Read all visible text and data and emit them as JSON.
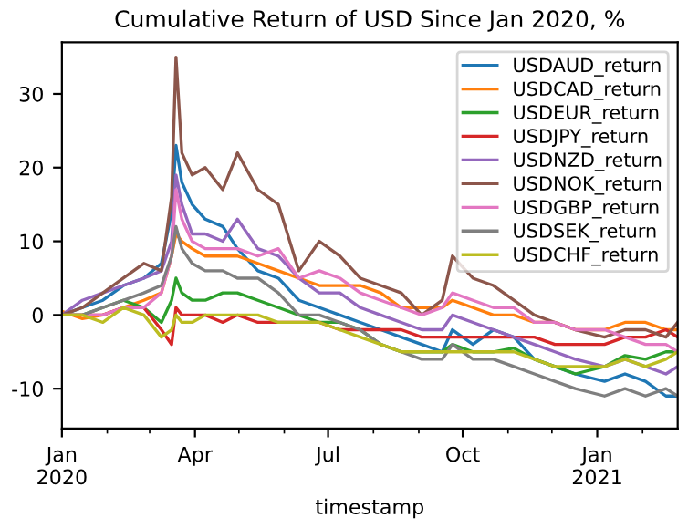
{
  "chart_data": {
    "type": "line",
    "title": "Cumulative Return of USD Since Jan 2020, %",
    "xlabel": "timestamp",
    "x": [
      "2020-01-01",
      "2020-01-15",
      "2020-01-29",
      "2020-02-12",
      "2020-02-26",
      "2020-03-09",
      "2020-03-16",
      "2020-03-19",
      "2020-03-23",
      "2020-03-30",
      "2020-04-08",
      "2020-04-20",
      "2020-04-30",
      "2020-05-14",
      "2020-05-28",
      "2020-06-11",
      "2020-06-25",
      "2020-07-09",
      "2020-07-23",
      "2020-08-06",
      "2020-08-20",
      "2020-09-03",
      "2020-09-17",
      "2020-09-24",
      "2020-10-08",
      "2020-10-22",
      "2020-11-05",
      "2020-11-19",
      "2020-12-03",
      "2020-12-17",
      "2021-01-06",
      "2021-01-20",
      "2021-02-03",
      "2021-02-17",
      "2021-02-25"
    ],
    "xlim": [
      "2020-01-01",
      "2021-02-25"
    ],
    "xticks": [
      {
        "value": "2020-01-01",
        "label": "Jan\n2020"
      },
      {
        "value": "2020-04-01",
        "label": "Apr"
      },
      {
        "value": "2020-07-01",
        "label": "Jul"
      },
      {
        "value": "2020-10-01",
        "label": "Oct"
      },
      {
        "value": "2021-01-01",
        "label": "Jan\n2021"
      }
    ],
    "ylim": [
      -15.4,
      37
    ],
    "yticks": [
      -10,
      0,
      10,
      20,
      30
    ],
    "grid": false,
    "legend": "top right",
    "series": [
      {
        "name": "USDAUD_return",
        "color": "#1f77b4",
        "values": [
          0,
          1,
          2,
          4,
          5,
          7,
          14,
          23,
          18,
          15,
          13,
          12,
          9,
          6,
          5,
          2,
          1,
          0,
          -1,
          -2,
          -3,
          -4,
          -5,
          -2,
          -4,
          -2,
          -3,
          -6,
          -7,
          -8,
          -9,
          -8,
          -9,
          -11,
          -11
        ]
      },
      {
        "name": "USDCAD_return",
        "color": "#ff7f0e",
        "values": [
          0.5,
          -0.5,
          0,
          1,
          2,
          3,
          8,
          11,
          10,
          9,
          8,
          8,
          8,
          7,
          6,
          5,
          4,
          4,
          4,
          3,
          1,
          1,
          1,
          2,
          1,
          0,
          0,
          -1,
          -1,
          -2,
          -2,
          -1,
          -1,
          -2,
          -2
        ]
      },
      {
        "name": "USDEUR_return",
        "color": "#2ca02c",
        "values": [
          0,
          0,
          1,
          2,
          1,
          -1,
          2,
          5,
          3,
          2,
          2,
          3,
          3,
          2,
          1,
          0,
          -1,
          -1,
          -2,
          -4,
          -5,
          -5,
          -5,
          -4,
          -5,
          -5,
          -4.5,
          -6,
          -7,
          -8,
          -7,
          -5.5,
          -6,
          -5,
          -5
        ]
      },
      {
        "name": "USDJPY_return",
        "color": "#d62728",
        "values": [
          0,
          0,
          0,
          1,
          1,
          -2,
          -4,
          1,
          0,
          0,
          0,
          -1,
          0,
          -1,
          -1,
          -1,
          -1,
          -2,
          -2,
          -2,
          -2,
          -3,
          -3,
          -3,
          -3,
          -3,
          -3,
          -3,
          -4,
          -4,
          -4,
          -3,
          -3,
          -2,
          -3
        ]
      },
      {
        "name": "USDNZD_return",
        "color": "#9467bd",
        "values": [
          0,
          2,
          3,
          4,
          5,
          6,
          10,
          19,
          15,
          11,
          11,
          10,
          13,
          9,
          8,
          5,
          3,
          3,
          1,
          0,
          -1,
          -2,
          -2,
          0,
          -1,
          -2,
          -3,
          -4,
          -5,
          -6,
          -7,
          -6,
          -7,
          -8,
          -7
        ]
      },
      {
        "name": "USDNOK_return",
        "color": "#8c564b",
        "values": [
          0,
          1,
          3,
          5,
          7,
          6,
          16,
          35,
          22,
          19,
          20,
          17,
          22,
          17,
          15,
          6,
          10,
          8,
          5,
          4,
          3,
          0,
          2,
          8,
          5,
          4,
          2,
          0,
          -1,
          -2,
          -3,
          -2,
          -2,
          -3,
          -1
        ]
      },
      {
        "name": "USDGBP_return",
        "color": "#e377c2",
        "values": [
          0,
          0,
          0,
          1,
          1,
          3,
          8,
          17,
          13,
          10,
          9,
          9,
          9,
          8,
          9,
          5,
          6,
          5,
          3,
          2,
          1,
          0,
          1,
          3,
          2,
          1,
          1,
          -1,
          -1,
          -2,
          -2,
          -3,
          -4,
          -4,
          -5
        ]
      },
      {
        "name": "USDSEK_return",
        "color": "#7f7f7f",
        "values": [
          0,
          0,
          1,
          2,
          3,
          4,
          8,
          12,
          9,
          7,
          6,
          6,
          5,
          5,
          3,
          0,
          0,
          -1,
          -2,
          -4,
          -5,
          -6,
          -6,
          -4,
          -6,
          -6,
          -7,
          -8,
          -9,
          -10,
          -11,
          -10,
          -11,
          -10,
          -11
        ]
      },
      {
        "name": "USDCHF_return",
        "color": "#bcbd22",
        "values": [
          0,
          0,
          -1,
          1,
          0,
          -3,
          -2,
          0,
          -1,
          -1,
          0,
          0,
          0,
          0,
          -1,
          -1,
          -1,
          -2,
          -3,
          -4,
          -5,
          -5,
          -5,
          -5,
          -5,
          -5,
          -5,
          -6,
          -7,
          -7,
          -7,
          -6,
          -7,
          -6,
          -5
        ]
      }
    ]
  }
}
